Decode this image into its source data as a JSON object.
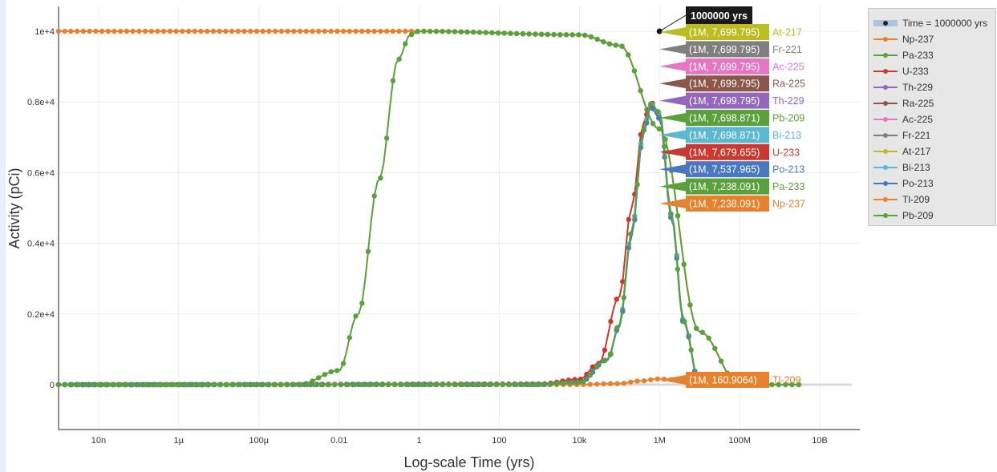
{
  "chart_data": {
    "type": "line",
    "xlabel": "Log-scale Time (yrs)",
    "ylabel": "Activity (pCi)",
    "x_scale": "log",
    "xlim": [
      1e-09,
      100000000000.0
    ],
    "ylim": [
      -1200,
      10700
    ],
    "x_ticks": [
      {
        "value": 1e-08,
        "label": "10n"
      },
      {
        "value": 1e-06,
        "label": "1µ"
      },
      {
        "value": 0.0001,
        "label": "100µ"
      },
      {
        "value": 0.01,
        "label": "0.01"
      },
      {
        "value": 1,
        "label": "1"
      },
      {
        "value": 100,
        "label": "100"
      },
      {
        "value": 10000.0,
        "label": "10k"
      },
      {
        "value": 1000000.0,
        "label": "1M"
      },
      {
        "value": 100000000.0,
        "label": "100M"
      },
      {
        "value": 10000000000.0,
        "label": "10B"
      }
    ],
    "y_ticks": [
      {
        "value": 0,
        "label": "0"
      },
      {
        "value": 2000,
        "label": "0.2e+4"
      },
      {
        "value": 4000,
        "label": "0.4e+4"
      },
      {
        "value": 6000,
        "label": "0.6e+4"
      },
      {
        "value": 8000,
        "label": "0.8e+4"
      },
      {
        "value": 10000,
        "label": "1e+4"
      }
    ],
    "grid": true,
    "legend_position": "right",
    "hover": {
      "x": 1000000,
      "header": "1000000 yrs",
      "labels": [
        {
          "text": "(1M, 7,699.795)",
          "name": "At-217",
          "color": "#bcbd22"
        },
        {
          "text": "(1M, 7,699.795)",
          "name": "Fr-221",
          "color": "#7f7f7f"
        },
        {
          "text": "(1M, 7,699.795)",
          "name": "Ac-225",
          "color": "#e377c2"
        },
        {
          "text": "(1M, 7,699.795)",
          "name": "Ra-225",
          "color": "#8c564b"
        },
        {
          "text": "(1M, 7,699.795)",
          "name": "Th-229",
          "color": "#9467bd"
        },
        {
          "text": "(1M, 7,698.871)",
          "name": "Pb-209",
          "color": "#5aa03b"
        },
        {
          "text": "(1M, 7,698.871)",
          "name": "Bi-213",
          "color": "#5bb8d1"
        },
        {
          "text": "(1M, 7,679.655)",
          "name": "U-233",
          "color": "#c83a2f"
        },
        {
          "text": "(1M, 7,537.965)",
          "name": "Po-213",
          "color": "#4a78c0"
        },
        {
          "text": "(1M, 7,238.091)",
          "name": "Pa-233",
          "color": "#5aa03b"
        },
        {
          "text": "(1M, 7,238.091)",
          "name": "Np-237",
          "color": "#e6822e"
        }
      ],
      "bottom_label": {
        "text": "(1M, 160.9064)",
        "name": "Tl-209",
        "color": "#e6822e"
      }
    },
    "legend": [
      {
        "name": "Time = 1000000 yrs",
        "color": "#222222",
        "kind": "time"
      },
      {
        "name": "Np-237",
        "color": "#e6822e"
      },
      {
        "name": "Pa-233",
        "color": "#5aa03b"
      },
      {
        "name": "U-233",
        "color": "#c83a2f"
      },
      {
        "name": "Th-229",
        "color": "#9467bd"
      },
      {
        "name": "Ra-225",
        "color": "#8c564b"
      },
      {
        "name": "Ac-225",
        "color": "#e377c2"
      },
      {
        "name": "Fr-221",
        "color": "#7f7f7f"
      },
      {
        "name": "At-217",
        "color": "#bcbd22"
      },
      {
        "name": "Bi-213",
        "color": "#5bb8d1"
      },
      {
        "name": "Po-213",
        "color": "#4a78c0"
      },
      {
        "name": "Tl-209",
        "color": "#e6822e"
      },
      {
        "name": "Pb-209",
        "color": "#5aa03b"
      }
    ],
    "series": [
      {
        "name": "Np-237",
        "color": "#e6822e",
        "x": [
          1e-09,
          1e-08,
          1,
          10000.0,
          100000.0,
          1000000.0,
          10000000.0,
          100000000.0
        ],
        "y": [
          10000,
          10000,
          10000,
          9900,
          9600,
          7238.091,
          1500,
          0
        ]
      },
      {
        "name": "Pa-233",
        "color": "#5aa03b",
        "x": [
          1e-09,
          0.001,
          0.01,
          0.03,
          0.1,
          0.3,
          0.6,
          1,
          10000.0,
          100000.0,
          1000000.0,
          10000000.0,
          100000000.0
        ],
        "y": [
          0,
          0,
          400,
          2000,
          5800,
          9200,
          9900,
          10000,
          9900,
          9600,
          7238.091,
          1500,
          0
        ]
      },
      {
        "name": "U-233",
        "color": "#c83a2f",
        "x": [
          1e-09,
          1000.0,
          10000.0,
          30000.0,
          100000.0,
          200000.0,
          400000.0,
          600000.0,
          1000000.0,
          2000000.0,
          4000000.0,
          10000000.0,
          30000000.0
        ],
        "y": [
          0,
          20,
          150,
          600,
          2500,
          5000,
          7400,
          8000,
          7679.655,
          4800,
          1800,
          0,
          0
        ]
      },
      {
        "name": "Th-229",
        "color": "#9467bd",
        "x": [
          1e-09,
          1000.0,
          10000.0,
          50000.0,
          100000.0,
          200000.0,
          400000.0,
          600000.0,
          1000000.0,
          2000000.0,
          4000000.0,
          10000000.0,
          30000000.0
        ],
        "y": [
          0,
          5,
          60,
          700,
          1700,
          4300,
          7200,
          7950,
          7699.795,
          4800,
          1800,
          0,
          0
        ]
      },
      {
        "name": "Ra-225",
        "color": "#8c564b",
        "x": [
          1e-09,
          1000.0,
          10000.0,
          50000.0,
          100000.0,
          200000.0,
          400000.0,
          600000.0,
          1000000.0,
          2000000.0,
          4000000.0,
          10000000.0,
          30000000.0
        ],
        "y": [
          0,
          5,
          60,
          700,
          1700,
          4300,
          7200,
          7950,
          7699.795,
          4800,
          1800,
          0,
          0
        ]
      },
      {
        "name": "Ac-225",
        "color": "#e377c2",
        "x": [
          1e-09,
          1000.0,
          10000.0,
          50000.0,
          100000.0,
          200000.0,
          400000.0,
          600000.0,
          1000000.0,
          2000000.0,
          4000000.0,
          10000000.0,
          30000000.0
        ],
        "y": [
          0,
          5,
          60,
          700,
          1700,
          4300,
          7200,
          7950,
          7699.795,
          4800,
          1800,
          0,
          0
        ]
      },
      {
        "name": "Fr-221",
        "color": "#7f7f7f",
        "x": [
          1e-09,
          1000.0,
          10000.0,
          50000.0,
          100000.0,
          200000.0,
          400000.0,
          600000.0,
          1000000.0,
          2000000.0,
          4000000.0,
          10000000.0,
          30000000.0
        ],
        "y": [
          0,
          5,
          60,
          700,
          1700,
          4300,
          7200,
          7950,
          7699.795,
          4800,
          1800,
          0,
          0
        ]
      },
      {
        "name": "At-217",
        "color": "#bcbd22",
        "x": [
          1e-09,
          1000.0,
          10000.0,
          50000.0,
          100000.0,
          200000.0,
          400000.0,
          600000.0,
          1000000.0,
          2000000.0,
          4000000.0,
          10000000.0,
          30000000.0
        ],
        "y": [
          0,
          5,
          60,
          700,
          1700,
          4300,
          7200,
          7950,
          7699.795,
          4800,
          1800,
          0,
          0
        ]
      },
      {
        "name": "Bi-213",
        "color": "#5bb8d1",
        "x": [
          1e-09,
          1000.0,
          10000.0,
          50000.0,
          100000.0,
          200000.0,
          400000.0,
          600000.0,
          1000000.0,
          2000000.0,
          4000000.0,
          10000000.0,
          30000000.0
        ],
        "y": [
          0,
          5,
          60,
          700,
          1700,
          4300,
          7200,
          7950,
          7698.871,
          4800,
          1800,
          0,
          0
        ]
      },
      {
        "name": "Po-213",
        "color": "#4a78c0",
        "x": [
          1e-09,
          1000.0,
          10000.0,
          50000.0,
          100000.0,
          200000.0,
          400000.0,
          600000.0,
          1000000.0,
          2000000.0,
          4000000.0,
          10000000.0,
          30000000.0
        ],
        "y": [
          0,
          5,
          60,
          700,
          1650,
          4200,
          7100,
          7850,
          7537.965,
          4700,
          1750,
          0,
          0
        ]
      },
      {
        "name": "Tl-209",
        "color": "#e6822e",
        "x": [
          1e-09,
          1000.0,
          10000.0,
          100000.0,
          300000.0,
          1000000.0,
          2000000.0,
          4000000.0,
          10000000.0,
          30000000.0,
          100000000.0,
          1000000000.0,
          3000000000.0
        ],
        "y": [
          0,
          0,
          5,
          30,
          100,
          160.9064,
          140,
          90,
          20,
          0,
          0,
          0,
          0
        ]
      },
      {
        "name": "Pb-209",
        "color": "#5aa03b",
        "x": [
          1e-09,
          1000.0,
          10000.0,
          50000.0,
          100000.0,
          200000.0,
          400000.0,
          600000.0,
          1000000.0,
          2000000.0,
          4000000.0,
          10000000.0,
          30000000.0,
          100000000.0,
          1000000000.0,
          3000000000.0
        ],
        "y": [
          0,
          5,
          60,
          700,
          1700,
          4300,
          7200,
          7950,
          7698.871,
          4800,
          1800,
          0,
          0,
          0,
          0,
          0
        ]
      }
    ]
  }
}
